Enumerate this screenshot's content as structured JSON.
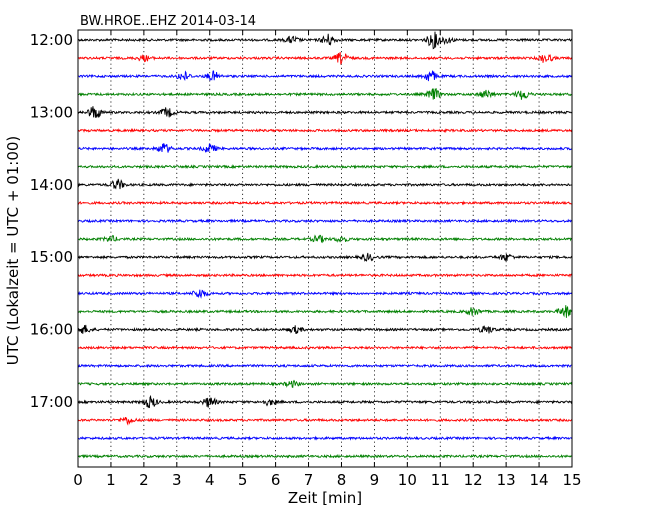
{
  "chart_data": {
    "type": "line",
    "title": "BW.HROE..EHZ 2014-03-14",
    "xlabel": "Zeit  [min]",
    "ylabel": "UTC (Lokalzeit = UTC + 01:00)",
    "xlim": [
      0,
      15
    ],
    "x_ticks": [
      "0",
      "1",
      "2",
      "3",
      "4",
      "5",
      "6",
      "7",
      "8",
      "9",
      "10",
      "11",
      "12",
      "13",
      "14",
      "15"
    ],
    "y_tick_labels": [
      "12:00",
      "13:00",
      "14:00",
      "15:00",
      "16:00",
      "17:00"
    ],
    "grid": "vertical dotted at each minute",
    "trace_interval_min": 15,
    "trace_colors": [
      "#000000",
      "#ff0000",
      "#0000ff",
      "#008000"
    ],
    "series": [
      {
        "start": "12:00",
        "events": [
          [
            6.5,
            0.6
          ],
          [
            7.6,
            1.0
          ],
          [
            10.8,
            1.4
          ],
          [
            11.2,
            0.5
          ]
        ]
      },
      {
        "start": "12:15",
        "events": [
          [
            2.0,
            0.5
          ],
          [
            8.0,
            1.0
          ],
          [
            14.2,
            0.8
          ]
        ]
      },
      {
        "start": "12:30",
        "events": [
          [
            3.2,
            0.8
          ],
          [
            4.1,
            0.8
          ],
          [
            10.7,
            1.0
          ]
        ]
      },
      {
        "start": "12:45",
        "events": [
          [
            10.8,
            1.0
          ],
          [
            12.4,
            0.7
          ],
          [
            13.5,
            0.9
          ]
        ]
      },
      {
        "start": "13:00",
        "events": [
          [
            0.5,
            1.2
          ],
          [
            2.7,
            0.8
          ]
        ]
      },
      {
        "start": "13:15",
        "events": []
      },
      {
        "start": "13:30",
        "events": [
          [
            2.6,
            0.9
          ],
          [
            4.0,
            0.8
          ]
        ]
      },
      {
        "start": "13:45",
        "events": []
      },
      {
        "start": "14:00",
        "events": [
          [
            1.2,
            0.9
          ]
        ]
      },
      {
        "start": "14:15",
        "events": []
      },
      {
        "start": "14:30",
        "events": []
      },
      {
        "start": "14:45",
        "events": [
          [
            1.0,
            0.5
          ],
          [
            7.3,
            0.6
          ],
          [
            8.0,
            0.5
          ]
        ]
      },
      {
        "start": "15:00",
        "events": [
          [
            8.8,
            0.6
          ],
          [
            13.0,
            0.6
          ]
        ]
      },
      {
        "start": "15:15",
        "events": []
      },
      {
        "start": "15:30",
        "events": [
          [
            3.7,
            0.8
          ]
        ]
      },
      {
        "start": "15:45",
        "events": [
          [
            12.0,
            0.7
          ],
          [
            14.8,
            1.0
          ]
        ]
      },
      {
        "start": "16:00",
        "events": [
          [
            0.2,
            0.7
          ],
          [
            6.6,
            0.6
          ],
          [
            12.4,
            0.7
          ]
        ]
      },
      {
        "start": "16:15",
        "events": []
      },
      {
        "start": "16:30",
        "events": []
      },
      {
        "start": "16:45",
        "events": [
          [
            6.5,
            0.5
          ]
        ]
      },
      {
        "start": "17:00",
        "events": [
          [
            2.2,
            1.0
          ],
          [
            4.0,
            0.9
          ],
          [
            5.8,
            0.5
          ]
        ]
      },
      {
        "start": "17:15",
        "events": [
          [
            1.5,
            0.6
          ]
        ]
      },
      {
        "start": "17:30",
        "events": []
      },
      {
        "start": "17:45",
        "events": []
      }
    ]
  }
}
